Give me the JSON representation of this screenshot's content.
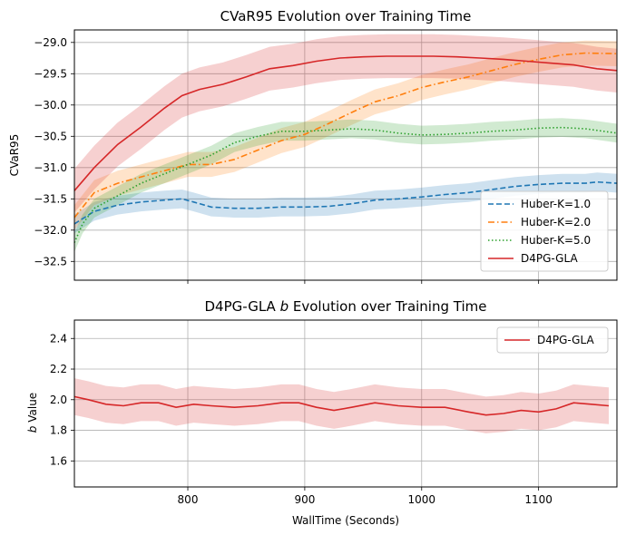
{
  "chart_data": [
    {
      "type": "line",
      "title": "CVaR95 Evolution over Training Time",
      "xlabel": "",
      "ylabel": "CVaR95",
      "xlim": [
        703,
        1167
      ],
      "ylim": [
        -32.8,
        -28.8
      ],
      "xticks": [
        800,
        900,
        1000,
        1100
      ],
      "yticks": [
        -29.0,
        -29.5,
        -30.0,
        -30.5,
        -31.0,
        -31.5,
        -32.0,
        -32.5
      ],
      "ytick_labels": [
        "−29.0",
        "−29.5",
        "−30.0",
        "−30.5",
        "−31.0",
        "−31.5",
        "−32.0",
        "−32.5"
      ],
      "grid": true,
      "legend_position": "lower-right",
      "series": [
        {
          "name": "Huber-K=1.0",
          "color": "#1f77b4",
          "style": "dashed",
          "band": 0.15,
          "x": [
            703,
            720,
            740,
            760,
            780,
            795,
            805,
            820,
            840,
            860,
            880,
            900,
            920,
            940,
            960,
            980,
            1000,
            1020,
            1040,
            1060,
            1080,
            1100,
            1120,
            1140,
            1150,
            1167
          ],
          "y": [
            -31.9,
            -31.7,
            -31.6,
            -31.55,
            -31.52,
            -31.5,
            -31.55,
            -31.63,
            -31.65,
            -31.65,
            -31.63,
            -31.63,
            -31.62,
            -31.58,
            -31.52,
            -31.5,
            -31.47,
            -31.43,
            -31.4,
            -31.35,
            -31.3,
            -31.27,
            -31.25,
            -31.25,
            -31.23,
            -31.25
          ]
        },
        {
          "name": "Huber-K=2.0",
          "color": "#ff7f0e",
          "style": "dashdot",
          "band": 0.2,
          "x": [
            703,
            720,
            740,
            760,
            780,
            800,
            820,
            840,
            860,
            880,
            900,
            920,
            940,
            960,
            980,
            1000,
            1020,
            1040,
            1060,
            1080,
            1100,
            1120,
            1140,
            1167
          ],
          "y": [
            -31.8,
            -31.4,
            -31.25,
            -31.15,
            -31.05,
            -30.95,
            -30.95,
            -30.87,
            -30.72,
            -30.57,
            -30.47,
            -30.3,
            -30.12,
            -29.95,
            -29.85,
            -29.72,
            -29.63,
            -29.55,
            -29.45,
            -29.35,
            -29.27,
            -29.2,
            -29.17,
            -29.18
          ]
        },
        {
          "name": "Huber-K=5.0",
          "color": "#2ca02c",
          "style": "dotted",
          "band": 0.15,
          "x": [
            703,
            710,
            720,
            740,
            760,
            780,
            800,
            820,
            840,
            860,
            880,
            900,
            920,
            940,
            960,
            980,
            1000,
            1020,
            1040,
            1060,
            1080,
            1100,
            1120,
            1140,
            1167
          ],
          "y": [
            -32.2,
            -31.9,
            -31.65,
            -31.45,
            -31.25,
            -31.1,
            -30.95,
            -30.8,
            -30.6,
            -30.5,
            -30.42,
            -30.42,
            -30.4,
            -30.38,
            -30.4,
            -30.45,
            -30.48,
            -30.47,
            -30.45,
            -30.42,
            -30.4,
            -30.37,
            -30.36,
            -30.38,
            -30.45
          ]
        },
        {
          "name": "D4PG-GLA",
          "color": "#d62728",
          "style": "solid",
          "band": 0.35,
          "x": [
            703,
            720,
            740,
            760,
            780,
            795,
            810,
            830,
            850,
            870,
            890,
            910,
            930,
            950,
            970,
            990,
            1010,
            1030,
            1050,
            1070,
            1090,
            1110,
            1130,
            1150,
            1167
          ],
          "y": [
            -31.37,
            -31.0,
            -30.63,
            -30.35,
            -30.05,
            -29.85,
            -29.75,
            -29.67,
            -29.55,
            -29.42,
            -29.37,
            -29.3,
            -29.25,
            -29.23,
            -29.22,
            -29.22,
            -29.22,
            -29.23,
            -29.25,
            -29.27,
            -29.3,
            -29.33,
            -29.36,
            -29.42,
            -29.45
          ]
        }
      ]
    },
    {
      "type": "line",
      "title": "D4PG-GLA b Evolution over Training Time",
      "title_prefix": "D4PG-GLA ",
      "title_italic": "b",
      "title_suffix": " Evolution over Training Time",
      "xlabel": "WallTime (Seconds)",
      "ylabel_italic": "b",
      "ylabel_suffix": " Value",
      "xlim": [
        703,
        1167
      ],
      "ylim": [
        1.43,
        2.52
      ],
      "xticks": [
        800,
        900,
        1000,
        1100
      ],
      "yticks": [
        1.6,
        1.8,
        2.0,
        2.2,
        2.4
      ],
      "ytick_labels": [
        "1.6",
        "1.8",
        "2.0",
        "2.2",
        "2.4"
      ],
      "grid": true,
      "legend_position": "top-right",
      "series": [
        {
          "name": "D4PG-GLA",
          "color": "#d62728",
          "style": "solid",
          "band": 0.12,
          "x": [
            703,
            715,
            730,
            745,
            760,
            775,
            790,
            805,
            820,
            840,
            860,
            880,
            895,
            910,
            925,
            940,
            960,
            980,
            1000,
            1020,
            1040,
            1055,
            1070,
            1085,
            1100,
            1115,
            1130,
            1145,
            1160
          ],
          "y": [
            2.02,
            2.0,
            1.97,
            1.96,
            1.98,
            1.98,
            1.95,
            1.97,
            1.96,
            1.95,
            1.96,
            1.98,
            1.98,
            1.95,
            1.93,
            1.95,
            1.98,
            1.96,
            1.95,
            1.95,
            1.92,
            1.9,
            1.91,
            1.93,
            1.92,
            1.94,
            1.98,
            1.97,
            1.96
          ]
        }
      ]
    }
  ]
}
